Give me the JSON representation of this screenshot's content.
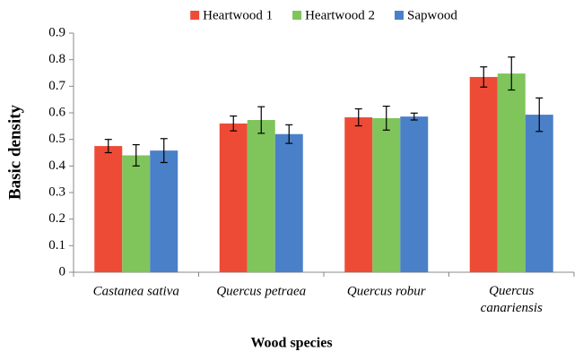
{
  "chart_data": {
    "type": "bar",
    "x_label": "Wood species",
    "y_label": "Basic density",
    "categories": [
      "Castanea sativa",
      "Quercus petraea",
      "Quercus robur",
      "Quercus canariensis"
    ],
    "series": [
      {
        "name": "Heartwood 1",
        "color": "#ee4b36",
        "values": [
          0.475,
          0.56,
          0.583,
          0.735
        ],
        "errors": [
          0.025,
          0.028,
          0.032,
          0.038
        ]
      },
      {
        "name": "Heartwood 2",
        "color": "#80c45c",
        "values": [
          0.44,
          0.573,
          0.58,
          0.748
        ],
        "errors": [
          0.04,
          0.05,
          0.045,
          0.062
        ]
      },
      {
        "name": "Sapwood",
        "color": "#4a80c8",
        "values": [
          0.458,
          0.52,
          0.586,
          0.593
        ],
        "errors": [
          0.045,
          0.035,
          0.013,
          0.063
        ]
      }
    ],
    "ylim": [
      0,
      0.9
    ],
    "yticks": [
      0,
      0.1,
      0.2,
      0.3,
      0.4,
      0.5,
      0.6,
      0.7,
      0.8,
      0.9
    ],
    "grid": false,
    "legend": "top"
  }
}
